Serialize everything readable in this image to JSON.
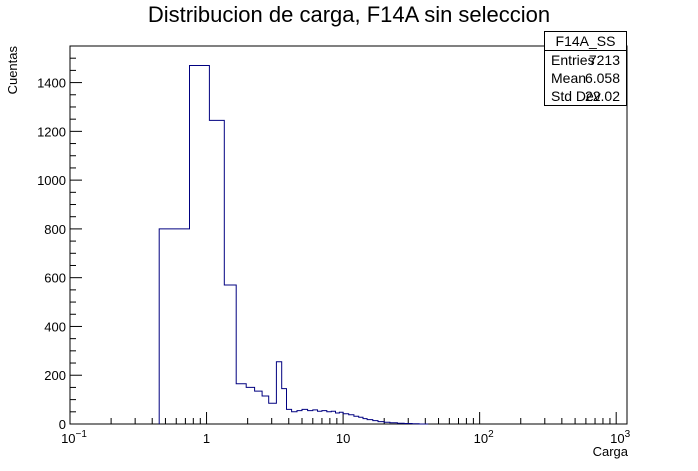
{
  "chart_data": {
    "type": "bar",
    "title": "Distribucion de carga, F14A sin seleccion",
    "xlabel": "Carga",
    "ylabel": "Cuentas",
    "x_scale": "log",
    "xlim": [
      0.1,
      1200
    ],
    "ylim": [
      0,
      1550
    ],
    "x_ticks": [
      {
        "value": 0.1,
        "base": "10",
        "exp": "−1"
      },
      {
        "value": 1,
        "base": "1",
        "exp": ""
      },
      {
        "value": 10,
        "base": "10",
        "exp": ""
      },
      {
        "value": 100,
        "base": "10",
        "exp": "2"
      },
      {
        "value": 1000,
        "base": "10",
        "exp": "3"
      }
    ],
    "y_ticks": [
      0,
      200,
      400,
      600,
      800,
      1000,
      1200,
      1400
    ],
    "line_color": "#000080",
    "bins": [
      [
        0.45,
        0.75,
        800
      ],
      [
        0.75,
        1.05,
        1470
      ],
      [
        1.05,
        1.35,
        1245
      ],
      [
        1.35,
        1.65,
        570
      ],
      [
        1.65,
        1.95,
        165
      ],
      [
        1.95,
        2.25,
        150
      ],
      [
        2.25,
        2.55,
        135
      ],
      [
        2.55,
        2.85,
        115
      ],
      [
        2.85,
        3.25,
        85
      ],
      [
        3.25,
        3.55,
        255
      ],
      [
        3.55,
        3.85,
        145
      ],
      [
        3.85,
        4.2,
        60
      ],
      [
        4.2,
        4.6,
        50
      ],
      [
        4.6,
        5.0,
        55
      ],
      [
        5.0,
        5.5,
        60
      ],
      [
        5.5,
        6.0,
        55
      ],
      [
        6.0,
        6.5,
        58
      ],
      [
        6.5,
        7.0,
        52
      ],
      [
        7.0,
        7.6,
        55
      ],
      [
        7.6,
        8.2,
        50
      ],
      [
        8.2,
        8.8,
        52
      ],
      [
        8.8,
        9.4,
        45
      ],
      [
        9.4,
        10.0,
        48
      ],
      [
        10.0,
        11.0,
        42
      ],
      [
        11.0,
        12.0,
        38
      ],
      [
        12.0,
        13.0,
        32
      ],
      [
        13.0,
        14.0,
        28
      ],
      [
        14.0,
        15.0,
        22
      ],
      [
        15.0,
        16.5,
        18
      ],
      [
        16.5,
        18.0,
        14
      ],
      [
        18.0,
        20.0,
        10
      ],
      [
        20.0,
        22.0,
        7
      ],
      [
        22.0,
        25.0,
        5
      ],
      [
        25.0,
        28.0,
        3
      ],
      [
        28.0,
        32.0,
        2
      ],
      [
        32.0,
        36.0,
        1
      ],
      [
        36.0,
        42.0,
        0
      ]
    ]
  },
  "stats": {
    "title": "F14A_SS",
    "entries_label": "Entries",
    "entries_value": "7213",
    "mean_label": "Mean",
    "mean_value": "6.058",
    "stddev_label": "Std Dev",
    "stddev_value": "22.02"
  }
}
